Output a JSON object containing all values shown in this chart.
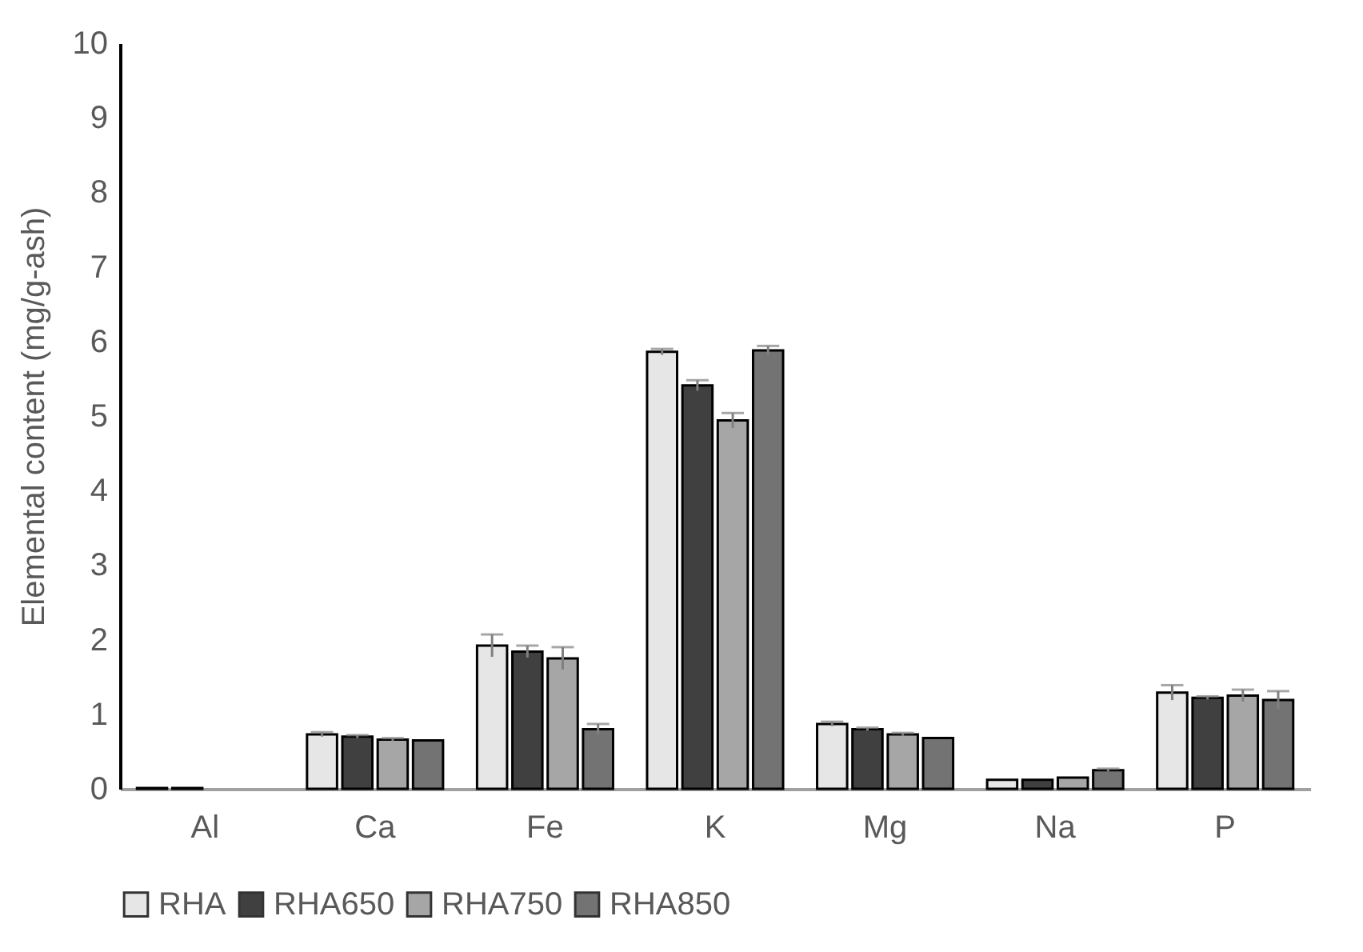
{
  "chart_data": {
    "type": "bar",
    "ylabel": "Elemental content (mg/g-ash)",
    "categories": [
      "Al",
      "Ca",
      "Fe",
      "K",
      "Mg",
      "Na",
      "P"
    ],
    "series": [
      {
        "name": "RHA",
        "color": "#e6e6e6",
        "values": [
          0.01,
          0.73,
          1.92,
          5.86,
          0.87,
          0.12,
          1.29
        ],
        "errors": [
          null,
          0.03,
          0.15,
          0.04,
          0.03,
          null,
          0.1
        ]
      },
      {
        "name": "RHA650",
        "color": "#404040",
        "values": [
          0.01,
          0.7,
          1.84,
          5.41,
          0.8,
          0.12,
          1.22
        ],
        "errors": [
          null,
          0.02,
          0.08,
          0.07,
          0.02,
          null,
          0.02
        ]
      },
      {
        "name": "RHA750",
        "color": "#a6a6a6",
        "values": [
          null,
          0.66,
          1.75,
          4.94,
          0.73,
          0.15,
          1.25
        ],
        "errors": [
          null,
          0.02,
          0.15,
          0.1,
          0.02,
          null,
          0.08
        ]
      },
      {
        "name": "RHA850",
        "color": "#737373",
        "values": [
          null,
          0.65,
          0.8,
          5.88,
          0.68,
          0.25,
          1.19
        ],
        "errors": [
          null,
          null,
          0.07,
          0.06,
          null,
          0.02,
          0.12
        ]
      }
    ],
    "ylim": [
      0,
      10
    ],
    "yticks": [
      0,
      1,
      2,
      3,
      4,
      5,
      6,
      7,
      8,
      9,
      10
    ],
    "grid": false,
    "legend": "bottom"
  }
}
